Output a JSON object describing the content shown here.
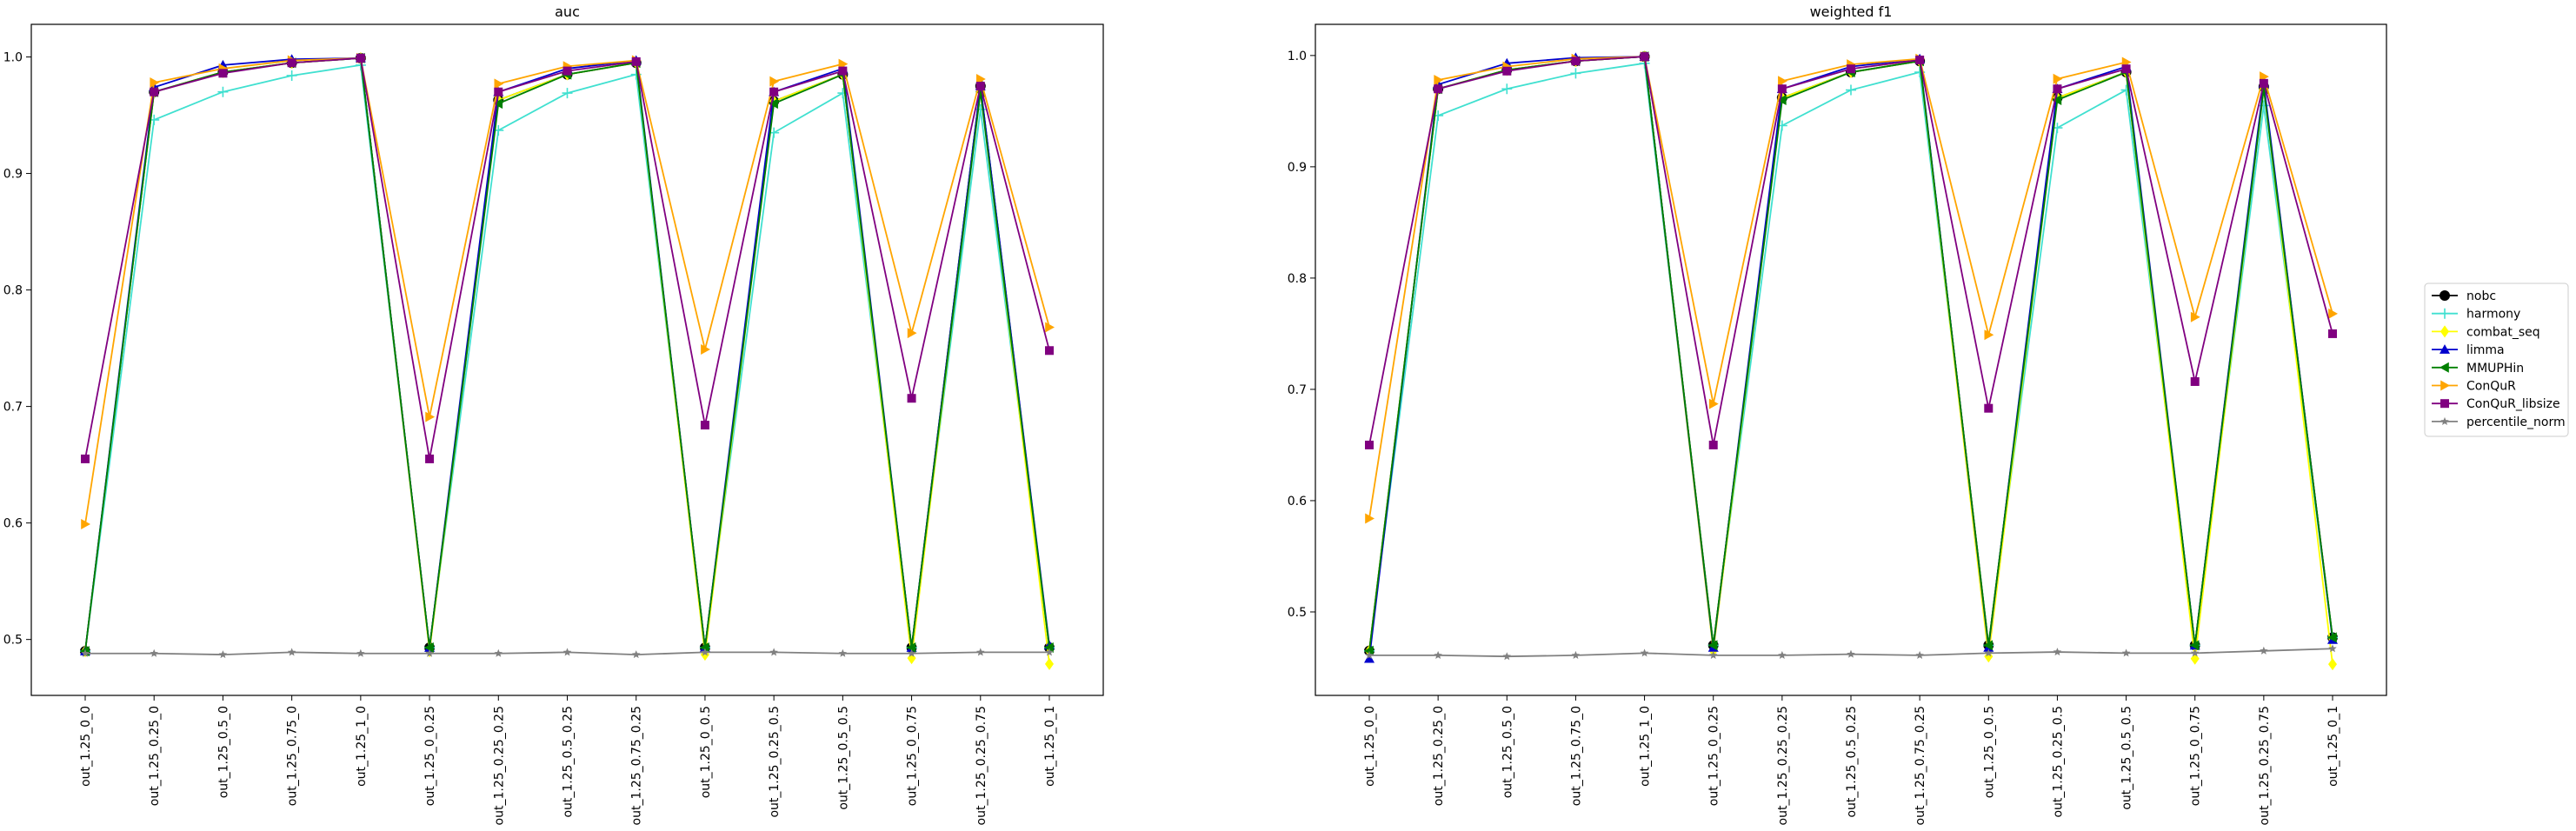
{
  "chart_data": [
    {
      "type": "line",
      "title": "auc",
      "xlabel": "",
      "ylabel": "",
      "ylim": [
        0.452,
        1.028
      ],
      "yticks": [
        0.5,
        0.6,
        0.7,
        0.8,
        0.9,
        1.0
      ],
      "ytick_labels": [
        "0.5",
        "0.6",
        "0.7",
        "0.8",
        "0.9",
        "1.0"
      ],
      "grid": false,
      "categories": [
        "out_1.25_0_0",
        "out_1.25_0.25_0",
        "out_1.25_0.5_0",
        "out_1.25_0.75_0",
        "out_1.25_1_0",
        "out_1.25_0_0.25",
        "out_1.25_0.25_0.25",
        "out_1.25_0.5_0.25",
        "out_1.25_0.75_0.25",
        "out_1.25_0_0.5",
        "out_1.25_0.25_0.5",
        "out_1.25_0.5_0.5",
        "out_1.25_0_0.75",
        "out_1.25_0.25_0.75",
        "out_1.25_0_1"
      ],
      "series": [
        {
          "name": "nobc",
          "color": "#000000",
          "marker": "circle",
          "values": [
            0.49,
            0.97,
            0.987,
            0.995,
            0.999,
            0.493,
            0.963,
            0.985,
            0.995,
            0.493,
            0.962,
            0.985,
            0.493,
            0.975,
            0.493
          ]
        },
        {
          "name": "harmony",
          "color": "#40e0d0",
          "marker": "plus",
          "values": [
            0.49,
            0.946,
            0.97,
            0.984,
            0.993,
            0.493,
            0.937,
            0.969,
            0.985,
            0.493,
            0.935,
            0.969,
            0.493,
            0.955,
            0.493
          ]
        },
        {
          "name": "combat_seq",
          "color": "#ffff00",
          "marker": "diamond",
          "values": [
            0.49,
            0.97,
            0.987,
            0.995,
            0.999,
            0.49,
            0.963,
            0.985,
            0.995,
            0.487,
            0.962,
            0.985,
            0.484,
            0.975,
            0.479
          ]
        },
        {
          "name": "limma",
          "color": "#0000cd",
          "marker": "triangle-up",
          "values": [
            0.49,
            0.974,
            0.993,
            0.998,
            0.999,
            0.493,
            0.97,
            0.99,
            0.997,
            0.493,
            0.97,
            0.99,
            0.493,
            0.975,
            0.495
          ]
        },
        {
          "name": "MMUPHin",
          "color": "#008000",
          "marker": "triangle-left",
          "values": [
            0.49,
            0.97,
            0.987,
            0.995,
            0.999,
            0.493,
            0.96,
            0.985,
            0.995,
            0.493,
            0.96,
            0.985,
            0.493,
            0.97,
            0.493
          ]
        },
        {
          "name": "ConQuR",
          "color": "#ffa500",
          "marker": "triangle-right",
          "values": [
            0.599,
            0.978,
            0.99,
            0.997,
            0.999,
            0.691,
            0.977,
            0.992,
            0.997,
            0.749,
            0.979,
            0.994,
            0.763,
            0.981,
            0.768
          ]
        },
        {
          "name": "ConQuR_libsize",
          "color": "#800080",
          "marker": "square",
          "values": [
            0.655,
            0.97,
            0.986,
            0.995,
            0.999,
            0.655,
            0.97,
            0.988,
            0.996,
            0.684,
            0.97,
            0.988,
            0.707,
            0.975,
            0.748
          ]
        },
        {
          "name": "percentile_norm",
          "color": "#808080",
          "marker": "star",
          "values": [
            0.488,
            0.488,
            0.487,
            0.489,
            0.488,
            0.488,
            0.488,
            0.489,
            0.487,
            0.489,
            0.489,
            0.488,
            0.488,
            0.489,
            0.489
          ]
        }
      ]
    },
    {
      "type": "line",
      "title": "weighted f1",
      "xlabel": "",
      "ylabel": "",
      "ylim": [
        0.425,
        1.028
      ],
      "yticks": [
        0.5,
        0.6,
        0.7,
        0.8,
        0.9,
        1.0
      ],
      "ytick_labels": [
        "0.5",
        "0.6",
        "0.7",
        "0.8",
        "0.9",
        "1.0"
      ],
      "grid": false,
      "categories": [
        "out_1.25_0_0",
        "out_1.25_0.25_0",
        "out_1.25_0.5_0",
        "out_1.25_0.75_0",
        "out_1.25_1_0",
        "out_1.25_0_0.25",
        "out_1.25_0.25_0.25",
        "out_1.25_0.5_0.25",
        "out_1.25_0.75_0.25",
        "out_1.25_0_0.5",
        "out_1.25_0.25_0.5",
        "out_1.25_0.5_0.5",
        "out_1.25_0_0.75",
        "out_1.25_0.25_0.75",
        "out_1.25_0_1"
      ],
      "series": [
        {
          "name": "nobc",
          "color": "#000000",
          "marker": "circle",
          "values": [
            0.465,
            0.97,
            0.987,
            0.995,
            0.999,
            0.47,
            0.962,
            0.985,
            0.995,
            0.47,
            0.962,
            0.985,
            0.47,
            0.972,
            0.477
          ]
        },
        {
          "name": "harmony",
          "color": "#40e0d0",
          "marker": "plus",
          "values": [
            0.465,
            0.946,
            0.97,
            0.984,
            0.993,
            0.47,
            0.937,
            0.969,
            0.985,
            0.47,
            0.935,
            0.969,
            0.47,
            0.955,
            0.477
          ]
        },
        {
          "name": "combat_seq",
          "color": "#ffff00",
          "marker": "diamond",
          "values": [
            0.465,
            0.97,
            0.987,
            0.995,
            0.999,
            0.465,
            0.962,
            0.985,
            0.995,
            0.46,
            0.962,
            0.985,
            0.458,
            0.972,
            0.453
          ]
        },
        {
          "name": "limma",
          "color": "#0000cd",
          "marker": "triangle-up",
          "values": [
            0.458,
            0.974,
            0.993,
            0.998,
            0.999,
            0.468,
            0.97,
            0.99,
            0.997,
            0.468,
            0.97,
            0.99,
            0.47,
            0.975,
            0.475
          ]
        },
        {
          "name": "MMUPHin",
          "color": "#008000",
          "marker": "triangle-left",
          "values": [
            0.465,
            0.97,
            0.987,
            0.995,
            0.999,
            0.47,
            0.96,
            0.985,
            0.995,
            0.47,
            0.96,
            0.985,
            0.47,
            0.97,
            0.477
          ]
        },
        {
          "name": "ConQuR",
          "color": "#ffa500",
          "marker": "triangle-right",
          "values": [
            0.584,
            0.978,
            0.99,
            0.997,
            0.999,
            0.687,
            0.977,
            0.992,
            0.997,
            0.749,
            0.979,
            0.994,
            0.765,
            0.981,
            0.768
          ]
        },
        {
          "name": "ConQuR_libsize",
          "color": "#800080",
          "marker": "square",
          "values": [
            0.65,
            0.97,
            0.986,
            0.995,
            0.999,
            0.65,
            0.97,
            0.988,
            0.996,
            0.683,
            0.97,
            0.988,
            0.707,
            0.975,
            0.75
          ]
        },
        {
          "name": "percentile_norm",
          "color": "#808080",
          "marker": "star",
          "values": [
            0.461,
            0.461,
            0.46,
            0.461,
            0.463,
            0.461,
            0.461,
            0.462,
            0.461,
            0.463,
            0.464,
            0.463,
            0.463,
            0.465,
            0.467
          ]
        }
      ]
    }
  ],
  "legend": {
    "placement": "right",
    "items": [
      "nobc",
      "harmony",
      "combat_seq",
      "limma",
      "MMUPHin",
      "ConQuR",
      "ConQuR_libsize",
      "percentile_norm"
    ]
  }
}
